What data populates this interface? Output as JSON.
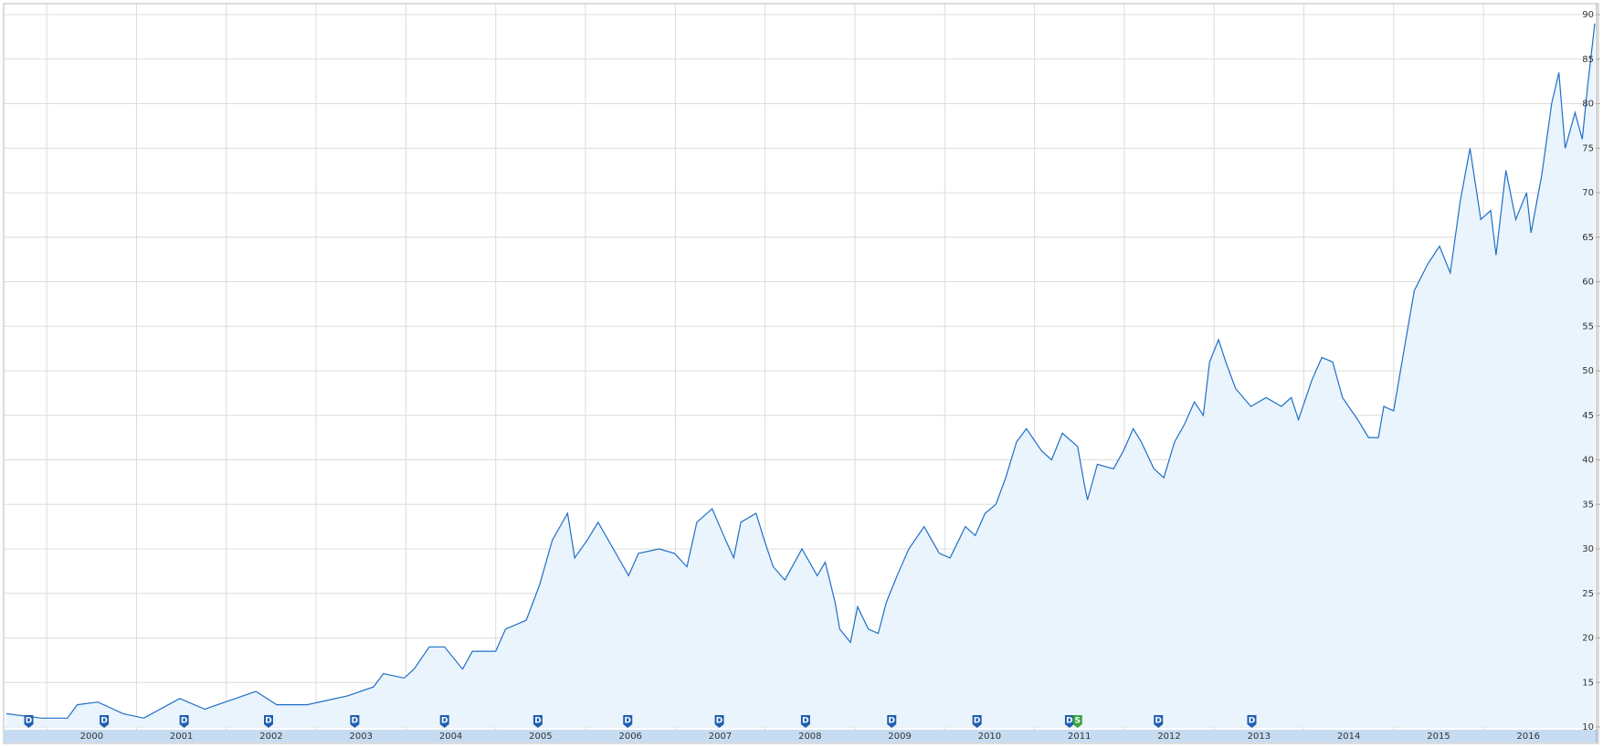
{
  "chart_data": {
    "type": "area",
    "x": [
      1999.55,
      1999.94,
      2000.23,
      2000.34,
      2000.57,
      2000.85,
      2001.08,
      2001.48,
      2001.76,
      2002.33,
      2002.56,
      2002.9,
      2003.35,
      2003.64,
      2003.75,
      2003.98,
      2004.09,
      2004.26,
      2004.43,
      2004.63,
      2004.74,
      2005.0,
      2005.11,
      2005.34,
      2005.49,
      2005.63,
      2005.8,
      2005.88,
      2006.02,
      2006.14,
      2006.31,
      2006.48,
      2006.59,
      2006.82,
      2006.99,
      2007.13,
      2007.24,
      2007.41,
      2007.56,
      2007.65,
      2007.73,
      2007.9,
      2007.99,
      2008.09,
      2008.22,
      2008.41,
      2008.58,
      2008.67,
      2008.78,
      2008.83,
      2008.95,
      2009.03,
      2009.15,
      2009.26,
      2009.35,
      2009.47,
      2009.6,
      2009.77,
      2009.94,
      2010.06,
      2010.23,
      2010.34,
      2010.45,
      2010.57,
      2010.68,
      2010.8,
      2010.91,
      2011.08,
      2011.19,
      2011.31,
      2011.48,
      2011.56,
      2011.59,
      2011.7,
      2011.88,
      2011.99,
      2012.1,
      2012.19,
      2012.33,
      2012.44,
      2012.56,
      2012.67,
      2012.78,
      2012.88,
      2012.95,
      2013.05,
      2013.13,
      2013.24,
      2013.41,
      2013.58,
      2013.75,
      2013.86,
      2013.94,
      2014.09,
      2014.2,
      2014.32,
      2014.43,
      2014.6,
      2014.72,
      2014.83,
      2014.89,
      2015.0,
      2015.11,
      2015.23,
      2015.38,
      2015.51,
      2015.63,
      2015.74,
      2015.85,
      2015.97,
      2016.08,
      2016.14,
      2016.25,
      2016.36,
      2016.48,
      2016.53,
      2016.65,
      2016.76,
      2016.84,
      2016.91,
      2017.02,
      2017.1,
      2017.16,
      2017.24
    ],
    "series": [
      {
        "color": "#1f6fc5",
        "fill": "#eaf4fc",
        "values": [
          11.5,
          11,
          11,
          12.5,
          12.8,
          11.5,
          11,
          13.2,
          12,
          14,
          12.5,
          12.5,
          13.5,
          14.5,
          16,
          15.5,
          16.5,
          19,
          19,
          16.5,
          18.5,
          18.5,
          21,
          22,
          26,
          31,
          34,
          29,
          31,
          33,
          30,
          27,
          29.5,
          30,
          29.5,
          28,
          33,
          34.5,
          31,
          29,
          33,
          34,
          31,
          28,
          26.5,
          30,
          27,
          28.5,
          24,
          21,
          19.5,
          23.5,
          21,
          20.5,
          24,
          27,
          30,
          32.5,
          29.5,
          29,
          32.5,
          31.5,
          34,
          35,
          38,
          42,
          43.5,
          41,
          40,
          43,
          41.5,
          37,
          35.5,
          39.5,
          39,
          41,
          43.5,
          42,
          39,
          38,
          42,
          44,
          46.5,
          45,
          51,
          53.5,
          51,
          48,
          46,
          47,
          46,
          47,
          44.5,
          49,
          51.5,
          51,
          47,
          44.5,
          42.5,
          42.5,
          46,
          45.5,
          52,
          59,
          62,
          64,
          61,
          69,
          75,
          67,
          68,
          63,
          72.5,
          67,
          70,
          65.5,
          72,
          80,
          83.5,
          75,
          79,
          76,
          82,
          89
        ]
      }
    ],
    "xlim": [
      1999.52,
      2017.26
    ],
    "xticks": [
      2000,
      2001,
      2002,
      2003,
      2004,
      2005,
      2006,
      2007,
      2008,
      2009,
      2010,
      2011,
      2012,
      2013,
      2014,
      2015,
      2016
    ],
    "ylim": [
      10,
      90
    ],
    "yticks": [
      10,
      15,
      20,
      25,
      30,
      35,
      40,
      45,
      50,
      55,
      60,
      65,
      70,
      75,
      80,
      85,
      90
    ],
    "grid": true,
    "events": [
      {
        "x": 1999.8,
        "label": "D"
      },
      {
        "x": 2000.64,
        "label": "D"
      },
      {
        "x": 2001.53,
        "label": "D"
      },
      {
        "x": 2002.47,
        "label": "D"
      },
      {
        "x": 2003.43,
        "label": "D"
      },
      {
        "x": 2004.43,
        "label": "D"
      },
      {
        "x": 2005.47,
        "label": "D"
      },
      {
        "x": 2006.47,
        "label": "D"
      },
      {
        "x": 2007.49,
        "label": "D"
      },
      {
        "x": 2008.45,
        "label": "D"
      },
      {
        "x": 2009.41,
        "label": "D"
      },
      {
        "x": 2010.36,
        "label": "D"
      },
      {
        "x": 2011.39,
        "label": "D"
      },
      {
        "x": 2011.48,
        "label": "S"
      },
      {
        "x": 2012.38,
        "label": "D"
      },
      {
        "x": 2013.42,
        "label": "D"
      }
    ]
  }
}
